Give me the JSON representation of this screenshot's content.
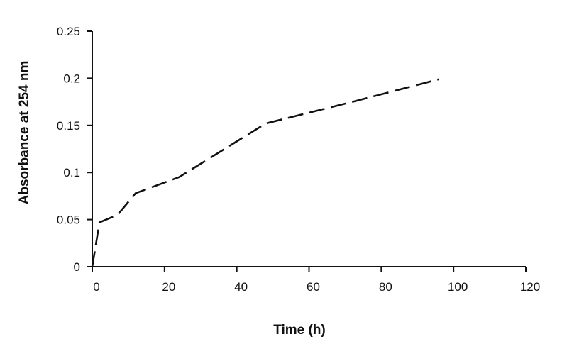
{
  "chart_data": {
    "type": "line",
    "title": "",
    "xlabel": "Time (h)",
    "ylabel": "Absorbance at  254 nm",
    "xlim": [
      0,
      120
    ],
    "ylim": [
      0,
      0.25
    ],
    "xticks": [
      0,
      20,
      40,
      60,
      80,
      100,
      120
    ],
    "yticks": [
      0,
      0.05,
      0.1,
      0.15,
      0.2,
      0.25
    ],
    "xtick_labels": [
      "0",
      "20",
      "40",
      "60",
      "80",
      "100",
      "120"
    ],
    "ytick_labels": [
      "0",
      "0.05",
      "0.1",
      "0.15",
      "0.2",
      "0.25"
    ],
    "grid": false,
    "legend": "none",
    "series": [
      {
        "line_style": "dashed",
        "color": "#111111",
        "points": [
          {
            "x": 0,
            "y": 0
          },
          {
            "x": 2,
            "y": 0.047
          },
          {
            "x": 7,
            "y": 0.055
          },
          {
            "x": 12,
            "y": 0.078
          },
          {
            "x": 24,
            "y": 0.095
          },
          {
            "x": 48,
            "y": 0.152
          },
          {
            "x": 72,
            "y": 0.175
          },
          {
            "x": 96,
            "y": 0.199
          }
        ]
      }
    ]
  }
}
